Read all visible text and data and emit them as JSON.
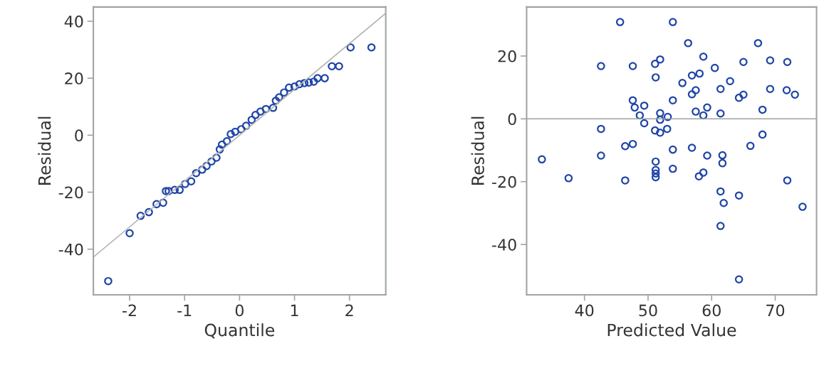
{
  "chart_data": [
    {
      "type": "scatter",
      "xlabel": "Quantile",
      "ylabel": "Residual",
      "xlim": [
        -2.66,
        2.66
      ],
      "ylim": [
        -56,
        45
      ],
      "xticks": [
        -2,
        -1,
        0,
        1,
        2
      ],
      "yticks": [
        -40,
        -20,
        0,
        20,
        40
      ],
      "grid": false,
      "marker": "circle",
      "series": [
        {
          "color": "#1f45a8",
          "x": [
            -2.39,
            -2.0,
            -1.8,
            -1.65,
            -1.51,
            -1.39,
            -1.34,
            -1.29,
            -1.18,
            -1.09,
            -0.99,
            -0.88,
            -0.79,
            -0.68,
            -0.6,
            -0.51,
            -0.42,
            -0.36,
            -0.32,
            -0.23,
            -0.16,
            -0.08,
            0.03,
            0.12,
            0.22,
            0.29,
            0.38,
            0.48,
            0.61,
            0.66,
            0.72,
            0.81,
            0.9,
            1.0,
            1.09,
            1.18,
            1.26,
            1.35,
            1.42,
            1.55,
            1.68,
            1.81,
            2.02,
            2.4
          ],
          "values": [
            -51.2,
            -34.4,
            -28.3,
            -27,
            -24.2,
            -23.7,
            -19.6,
            -19.6,
            -19.2,
            -19.2,
            -17.1,
            -16.2,
            -13.3,
            -12.1,
            -10.8,
            -9.2,
            -7.9,
            -5.0,
            -3.3,
            -2.1,
            0.4,
            1.2,
            2.1,
            3.3,
            5.4,
            7.1,
            8.3,
            9.2,
            9.6,
            12.1,
            13.3,
            15,
            16.7,
            17.1,
            17.9,
            18.3,
            18.5,
            18.8,
            20,
            20,
            24.2,
            24.2,
            30.8,
            30.8
          ]
        },
        {
          "type": "line",
          "color": "#b4b4b4",
          "marker": "none",
          "x": [
            -2.66,
            2.66
          ],
          "values": [
            -42.8,
            42.8
          ]
        }
      ]
    },
    {
      "type": "scatter",
      "xlabel": "Predicted Value",
      "ylabel": "Residual",
      "xlim": [
        30.9,
        76.5
      ],
      "ylim": [
        -56,
        35.6
      ],
      "xticks": [
        40,
        50,
        60,
        70
      ],
      "yticks": [
        -40,
        -20,
        0,
        20
      ],
      "grid": false,
      "marker": "circle",
      "ref_lines": [
        {
          "axis": "y",
          "value": 0,
          "color": "#a0a0a0"
        }
      ],
      "series": [
        {
          "color": "#1f45a8",
          "x": [
            45.6,
            53.9,
            56.3,
            67.3,
            58.7,
            51.9,
            51.1,
            42.6,
            47.6,
            65.0,
            69.2,
            71.9,
            60.5,
            51.2,
            56.9,
            58.1,
            55.4,
            62.9,
            61.4,
            69.2,
            71.8,
            73.1,
            57.5,
            56.9,
            65.0,
            64.3,
            47.6,
            53.9,
            49.4,
            47.9,
            59.3,
            68.0,
            57.5,
            48.7,
            51.9,
            58.7,
            61.4,
            53.1,
            51.9,
            49.4,
            42.6,
            53.0,
            51.1,
            51.9,
            68.0,
            47.6,
            46.4,
            66.1,
            53.9,
            56.9,
            42.6,
            59.3,
            61.7,
            61.7,
            33.3,
            51.2,
            51.2,
            51.2,
            51.2,
            53.9,
            58.7,
            58.0,
            37.5,
            46.4,
            71.9,
            61.4,
            64.3,
            61.9,
            74.3,
            61.4,
            64.3
          ],
          "values": [
            30.8,
            30.8,
            24.1,
            24.1,
            19.8,
            18.9,
            17.5,
            16.8,
            16.8,
            18.1,
            18.6,
            18.1,
            16.2,
            13.2,
            13.8,
            14.4,
            11.4,
            12.0,
            9.5,
            9.5,
            9.1,
            7.7,
            9.1,
            7.8,
            7.7,
            6.7,
            5.9,
            5.9,
            4.2,
            3.6,
            3.6,
            2.9,
            2.3,
            1.1,
            1.8,
            1.1,
            1.7,
            0.6,
            -0.3,
            -1.4,
            -3.2,
            -3.2,
            -3.7,
            -4.4,
            -5.0,
            -8.0,
            -8.7,
            -8.6,
            -9.8,
            -9.2,
            -11.7,
            -11.7,
            -11.6,
            -14.1,
            -12.9,
            -13.6,
            -16.3,
            -17.4,
            -18.6,
            -15.9,
            -17.1,
            -18.3,
            -18.9,
            -19.6,
            -19.6,
            -23.1,
            -24.4,
            -26.8,
            -28.0,
            -34.1,
            -51.1
          ]
        }
      ]
    }
  ]
}
